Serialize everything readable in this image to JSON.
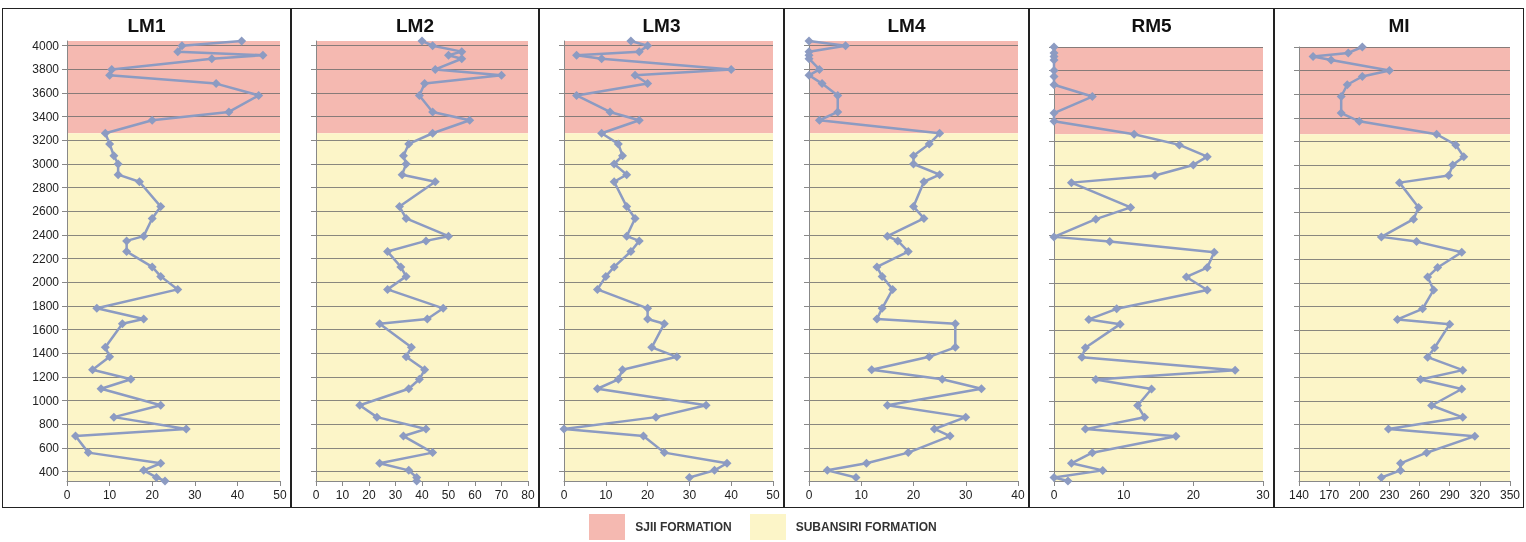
{
  "chart_data": [
    {
      "type": "line",
      "title": "LM1",
      "series": [
        {
          "color": "#8c9bc2",
          "x": [
            41,
            27,
            26,
            46,
            34,
            10.5,
            10,
            35,
            45,
            38,
            20,
            9,
            10,
            11,
            12,
            12,
            17,
            22,
            20,
            18,
            14,
            14,
            20,
            22,
            26,
            7,
            18,
            13,
            9,
            10,
            6,
            15,
            8,
            22,
            11,
            28,
            2,
            5,
            22,
            18,
            21,
            23
          ],
          "values": [
            4040,
            4000,
            3950,
            3920,
            3890,
            3800,
            3750,
            3680,
            3580,
            3440,
            3370,
            3260,
            3170,
            3070,
            3000,
            2910,
            2850,
            2640,
            2540,
            2390,
            2350,
            2260,
            2130,
            2050,
            1940,
            1780,
            1690,
            1650,
            1450,
            1370,
            1260,
            1180,
            1100,
            960,
            860,
            760,
            700,
            560,
            470,
            410,
            350,
            320
          ]
        }
      ],
      "xlim": [
        0,
        50
      ],
      "xticks": [
        0,
        10,
        20,
        30,
        40,
        50
      ],
      "ylim": [
        320,
        4040
      ],
      "yticks": [
        400,
        600,
        800,
        {
          "value": 1000,
          "label": "1000"
        },
        {
          "value": 1200,
          "label": "1200"
        },
        {
          "value": 1400,
          "label": "1400"
        },
        {
          "value": 1600,
          "label": "1600"
        },
        {
          "value": 1800,
          "label": "1800"
        },
        {
          "value": 2000,
          "label": "2000"
        },
        {
          "value": 2200,
          "label": "2200"
        },
        {
          "value": 2400,
          "label": "2400"
        },
        {
          "value": 2600,
          "label": "2600"
        },
        {
          "value": 2800,
          "label": "2800"
        },
        {
          "value": 3000,
          "label": "3000"
        },
        {
          "value": 3200,
          "label": "3200"
        },
        {
          "value": 3400,
          "label": "3400"
        },
        {
          "value": 3600,
          "label": "3600"
        },
        {
          "value": 3800,
          "label": "3800"
        },
        {
          "value": 4000,
          "label": "4000"
        }
      ],
      "grid": "y",
      "marker": "diamond",
      "line_style": "solid",
      "legend": "bottom",
      "bands": [
        {
          "axis": "y",
          "from": 3260,
          "to": 4040,
          "label": "SJII FORMATION",
          "color": "#f5b9b1"
        },
        {
          "axis": "y",
          "from": 320,
          "to": 3260,
          "label": "SUBANSIRI FORMATION",
          "color": "#fcf5c8"
        }
      ]
    },
    {
      "type": "line",
      "title": "LM2",
      "series": [
        {
          "color": "#8c9bc2",
          "x": [
            40,
            44,
            55,
            50,
            55,
            45,
            70,
            41,
            39,
            44,
            58,
            44,
            35,
            33,
            34,
            32.5,
            45,
            31.5,
            34,
            50,
            41.5,
            27,
            32,
            34,
            27,
            48,
            42,
            24,
            36,
            34,
            41,
            39,
            35,
            16.5,
            23,
            41.5,
            33,
            44,
            24,
            35,
            38,
            38
          ],
          "values": [
            4040,
            4000,
            3950,
            3920,
            3890,
            3800,
            3750,
            3680,
            3580,
            3440,
            3370,
            3260,
            3170,
            3070,
            3000,
            2910,
            2850,
            2640,
            2540,
            2390,
            2350,
            2260,
            2130,
            2050,
            1940,
            1780,
            1690,
            1650,
            1450,
            1370,
            1260,
            1180,
            1100,
            960,
            860,
            760,
            700,
            560,
            470,
            410,
            350,
            320
          ]
        }
      ],
      "xlim": [
        0,
        80
      ],
      "xticks": [
        0,
        10,
        20,
        30,
        40,
        50,
        60,
        70,
        80
      ],
      "ylim": [
        320,
        4040
      ],
      "yticks": [
        400,
        600,
        800,
        1000,
        1200,
        1400,
        1600,
        1800,
        2000,
        2200,
        2400,
        2600,
        2800,
        3000,
        3200,
        3400,
        3600,
        3800,
        4000
      ],
      "grid": "y",
      "marker": "diamond",
      "line_style": "solid",
      "tick_labels": "x",
      "bands": [
        {
          "axis": "y",
          "from": 3260,
          "to": 4040,
          "color": "#f5b9b1"
        },
        {
          "axis": "y",
          "from": 320,
          "to": 3260,
          "color": "#fcf5c8"
        }
      ]
    },
    {
      "type": "line",
      "title": "LM3",
      "series": [
        {
          "color": "#8c9bc2",
          "x": [
            16,
            20,
            18,
            3,
            9,
            40,
            17,
            20,
            3,
            11,
            18,
            9,
            13,
            14,
            12,
            15,
            12,
            15,
            17,
            15,
            18,
            16,
            12,
            10,
            8,
            20,
            20,
            24,
            21,
            27,
            14,
            13,
            8,
            34,
            22,
            0,
            19,
            24,
            39,
            36,
            30,
            null
          ],
          "values": [
            4040,
            4000,
            3950,
            3920,
            3890,
            3800,
            3750,
            3680,
            3580,
            3440,
            3370,
            3260,
            3170,
            3070,
            3000,
            2910,
            2850,
            2640,
            2540,
            2390,
            2350,
            2260,
            2130,
            2050,
            1940,
            1780,
            1690,
            1650,
            1450,
            1370,
            1260,
            1180,
            1100,
            960,
            860,
            760,
            700,
            560,
            470,
            410,
            350,
            null
          ]
        }
      ],
      "xlim": [
        0,
        50
      ],
      "xticks": [
        0,
        10,
        20,
        30,
        40,
        50
      ],
      "ylim": [
        320,
        4040
      ],
      "yticks": [
        400,
        600,
        800,
        1000,
        1200,
        1400,
        1600,
        1800,
        2000,
        2200,
        2400,
        2600,
        2800,
        3000,
        3200,
        3400,
        3600,
        3800,
        4000
      ],
      "grid": "y",
      "marker": "diamond",
      "line_style": "solid",
      "tick_labels": "x",
      "bands": [
        {
          "axis": "y",
          "from": 3260,
          "to": 4040,
          "color": "#f5b9b1"
        },
        {
          "axis": "y",
          "from": 320,
          "to": 3260,
          "color": "#fcf5c8"
        }
      ]
    },
    {
      "type": "line",
      "title": "LM4",
      "series": [
        {
          "color": "#8c9bc2",
          "x": [
            0,
            7,
            0,
            0,
            0,
            2,
            0,
            2.5,
            5.5,
            5.5,
            2,
            25,
            23,
            20,
            20,
            25,
            22,
            20,
            22,
            15,
            17,
            19,
            13,
            14,
            16,
            14,
            13,
            28,
            28,
            23,
            12,
            25.5,
            33,
            15,
            30,
            24,
            27,
            19,
            11,
            3.5,
            9,
            null
          ],
          "values": [
            4040,
            4000,
            3950,
            3920,
            3890,
            3800,
            3750,
            3680,
            3580,
            3440,
            3370,
            3260,
            3170,
            3070,
            3000,
            2910,
            2850,
            2640,
            2540,
            2390,
            2350,
            2260,
            2130,
            2050,
            1940,
            1780,
            1690,
            1650,
            1450,
            1370,
            1260,
            1180,
            1100,
            960,
            860,
            760,
            700,
            560,
            470,
            410,
            350,
            null
          ]
        }
      ],
      "xlim": [
        0,
        40
      ],
      "xticks": [
        0,
        10,
        20,
        30,
        40
      ],
      "ylim": [
        320,
        4040
      ],
      "yticks": [
        400,
        600,
        800,
        1000,
        1200,
        1400,
        1600,
        1800,
        2000,
        2200,
        2400,
        2600,
        2800,
        3000,
        3200,
        3400,
        3600,
        3800,
        4000
      ],
      "grid": "y",
      "marker": "diamond",
      "line_style": "solid",
      "tick_labels": "x",
      "bands": [
        {
          "axis": "y",
          "from": 3260,
          "to": 4040,
          "color": "#f5b9b1"
        },
        {
          "axis": "y",
          "from": 320,
          "to": 3260,
          "color": "#fcf5c8"
        }
      ]
    },
    {
      "type": "line",
      "title": "RM5",
      "series": [
        {
          "color": "#8c9bc2",
          "x": [
            null,
            0,
            0,
            0,
            0,
            0,
            0,
            0,
            5.5,
            0,
            0,
            11.5,
            18,
            22,
            20,
            14.5,
            2.5,
            11,
            6,
            0,
            8,
            23,
            22,
            19,
            22,
            9,
            5,
            9.5,
            4.5,
            4,
            26,
            6,
            14,
            12,
            13,
            4.5,
            17.5,
            5.5,
            2.5,
            7,
            0,
            2
          ],
          "values": [
            null,
            4000,
            3950,
            3920,
            3890,
            3800,
            3750,
            3680,
            3580,
            3440,
            3370,
            3260,
            3170,
            3070,
            3000,
            2910,
            2850,
            2640,
            2540,
            2390,
            2350,
            2260,
            2130,
            2050,
            1940,
            1780,
            1690,
            1650,
            1450,
            1370,
            1260,
            1180,
            1100,
            960,
            860,
            760,
            700,
            560,
            470,
            410,
            350,
            320
          ]
        }
      ],
      "xlim": [
        0,
        30
      ],
      "xticks": [
        0,
        10,
        20,
        30
      ],
      "ylim": [
        320,
        4000
      ],
      "yticks": [
        400,
        600,
        800,
        1000,
        1200,
        1400,
        1600,
        1800,
        2000,
        2200,
        2400,
        2600,
        2800,
        3000,
        3200,
        3400,
        3600,
        3800,
        4000
      ],
      "grid": "y",
      "marker": "diamond",
      "line_style": "solid",
      "tick_labels": "x",
      "bands": [
        {
          "axis": "y",
          "from": 3260,
          "to": 4000,
          "color": "#f5b9b1"
        },
        {
          "axis": "y",
          "from": 320,
          "to": 3260,
          "color": "#fcf5c8"
        }
      ]
    },
    {
      "type": "line",
      "title": "MI",
      "series": [
        {
          "color": "#8c9bc2",
          "x": [
            null,
            203,
            189,
            154,
            172,
            230,
            203,
            188,
            182,
            182,
            200,
            277,
            296,
            304,
            293,
            289,
            240,
            259,
            254,
            222,
            257,
            302,
            278,
            268,
            274,
            263,
            238,
            290,
            275,
            268,
            303,
            261,
            302,
            272,
            303,
            229,
            315,
            267,
            241,
            241,
            222,
            null
          ],
          "values": [
            null,
            4000,
            3950,
            3920,
            3890,
            3800,
            3750,
            3680,
            3580,
            3440,
            3370,
            3260,
            3170,
            3070,
            3000,
            2910,
            2850,
            2640,
            2540,
            2390,
            2350,
            2260,
            2130,
            2050,
            1940,
            1780,
            1690,
            1650,
            1450,
            1370,
            1260,
            1180,
            1100,
            960,
            860,
            760,
            700,
            560,
            470,
            410,
            350,
            null
          ]
        }
      ],
      "xlim": [
        140,
        350
      ],
      "xticks": [
        140,
        170,
        200,
        230,
        260,
        290,
        320,
        350
      ],
      "ylim": [
        320,
        4000
      ],
      "yticks": [
        400,
        600,
        800,
        1000,
        1200,
        1400,
        1600,
        1800,
        2000,
        2200,
        2400,
        2600,
        2800,
        3000,
        3200,
        3400,
        3600,
        3800,
        4000
      ],
      "grid": "y",
      "marker": "diamond",
      "line_style": "solid",
      "tick_labels": "x",
      "bands": [
        {
          "axis": "y",
          "from": 3260,
          "to": 4000,
          "color": "#f5b9b1"
        },
        {
          "axis": "y",
          "from": 320,
          "to": 3260,
          "color": "#fcf5c8"
        }
      ]
    }
  ]
}
